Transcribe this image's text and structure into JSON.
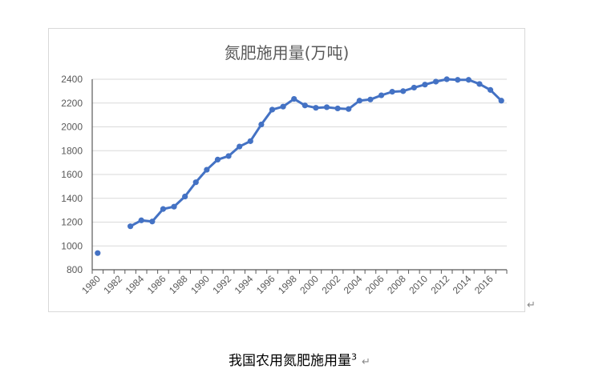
{
  "chart_data": {
    "type": "line",
    "title": "氮肥施用量(万吨)",
    "xlabel": "",
    "ylabel": "",
    "ylim": [
      800,
      2400
    ],
    "yticks": [
      800,
      1000,
      1200,
      1400,
      1600,
      1800,
      2000,
      2200,
      2400
    ],
    "x": [
      1980,
      1981,
      1982,
      1983,
      1984,
      1985,
      1986,
      1987,
      1988,
      1989,
      1990,
      1991,
      1992,
      1993,
      1994,
      1995,
      1996,
      1997,
      1998,
      1999,
      2000,
      2001,
      2002,
      2003,
      2004,
      2005,
      2006,
      2007,
      2008,
      2009,
      2010,
      2011,
      2012,
      2013,
      2014,
      2015,
      2016,
      2017
    ],
    "xtick_labels": [
      "1980",
      "1982",
      "1984",
      "1986",
      "1988",
      "1990",
      "1992",
      "1994",
      "1996",
      "1998",
      "2000",
      "2002",
      "2004",
      "2006",
      "2008",
      "2010",
      "2012",
      "2014",
      "2016"
    ],
    "values": [
      940,
      null,
      null,
      1165,
      1215,
      1205,
      1310,
      1330,
      1415,
      1535,
      1640,
      1725,
      1755,
      1835,
      1880,
      2020,
      2145,
      2170,
      2235,
      2180,
      2160,
      2165,
      2155,
      2150,
      2220,
      2230,
      2265,
      2295,
      2300,
      2330,
      2355,
      2380,
      2400,
      2395,
      2395,
      2360,
      2310,
      2220
    ],
    "color": "#4472c4",
    "grid": true,
    "legend": "none"
  },
  "caption": {
    "text": "我国农用氮肥施用量",
    "superscript": "3",
    "return_mark": "↵"
  },
  "return_mark": "↵"
}
